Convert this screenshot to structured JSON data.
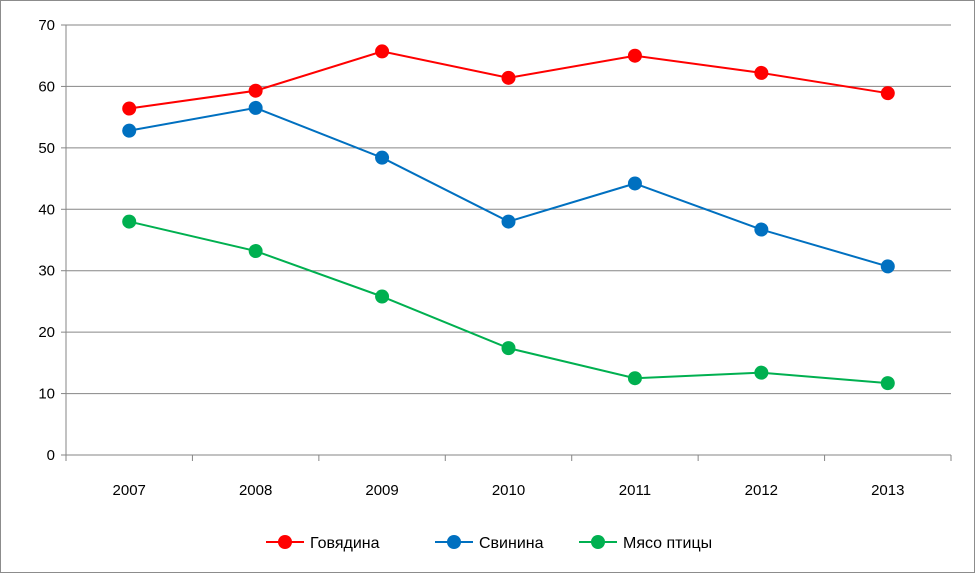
{
  "chart_data": {
    "type": "line",
    "title": "",
    "xlabel": "",
    "ylabel": "",
    "categories": [
      "2007",
      "2008",
      "2009",
      "2010",
      "2011",
      "2012",
      "2013"
    ],
    "ylim": [
      0,
      70
    ],
    "yticks": [
      0,
      10,
      20,
      30,
      40,
      50,
      60,
      70
    ],
    "grid": true,
    "legend_position": "bottom",
    "series": [
      {
        "name": "Говядина",
        "color": "#ff0000",
        "values": [
          56.4,
          59.3,
          65.7,
          61.4,
          65.0,
          62.2,
          58.9
        ]
      },
      {
        "name": "Свинина",
        "color": "#0070c0",
        "values": [
          52.8,
          56.5,
          48.4,
          38.0,
          44.2,
          36.7,
          30.7
        ]
      },
      {
        "name": "Мясо птицы",
        "color": "#00b050",
        "values": [
          38.0,
          33.2,
          25.8,
          17.4,
          12.5,
          13.4,
          11.7
        ]
      }
    ]
  }
}
